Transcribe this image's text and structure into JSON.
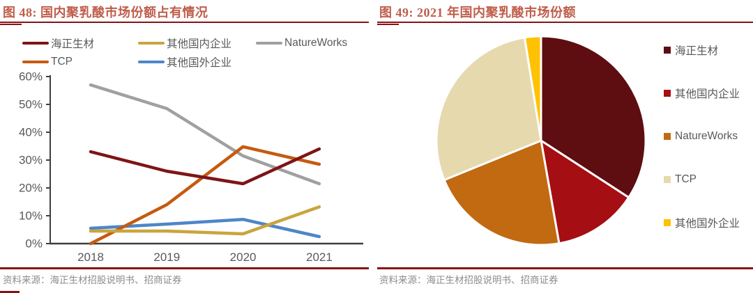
{
  "panels": {
    "left": {
      "title": "图 48: 国内聚乳酸市场份额占有情况",
      "source": "资料来源：海正生材招股说明书、招商证券"
    },
    "right": {
      "title": "图 49: 2021 年国内聚乳酸市场份额",
      "source": "资料来源：海正生材招股说明书、招商证券"
    }
  },
  "colors": {
    "title_text": "#BF5C49",
    "rule_dark_red": "#871215",
    "axis": "#3F3F3F",
    "tick_label": "#595959",
    "legend_label": "#595959",
    "source_text": "#8C8C8C",
    "pie_slice_border": "#FFFFFF"
  },
  "chart_data": [
    {
      "type": "line",
      "title": "国内聚乳酸市场份额占有情况",
      "categories": [
        "2018",
        "2019",
        "2020",
        "2021"
      ],
      "series": [
        {
          "name": "海正生材",
          "color": "#7F1416",
          "values": [
            33,
            26,
            21.5,
            34
          ]
        },
        {
          "name": "其他国内企业",
          "color": "#C9A53E",
          "values": [
            4.5,
            4.5,
            3.5,
            13.2
          ]
        },
        {
          "name": "NatureWorks",
          "color": "#A0A0A0",
          "values": [
            57,
            48.5,
            31.5,
            21.5
          ]
        },
        {
          "name": "TCP",
          "color": "#C55A11",
          "values": [
            0,
            14,
            34.8,
            28.5
          ]
        },
        {
          "name": "其他国外企业",
          "color": "#4E86C8",
          "values": [
            5.5,
            7,
            8.7,
            2.5
          ]
        }
      ],
      "ylim": [
        0,
        60
      ],
      "ytick_step": 10,
      "ytick_suffix": "%",
      "grid": false,
      "legend_position": "top"
    },
    {
      "type": "pie",
      "title": "2021 年国内聚乳酸市场份额",
      "labels": [
        "海正生材",
        "其他国内企业",
        "NatureWorks",
        "TCP",
        "其他国外企业"
      ],
      "values": [
        34,
        13,
        21.5,
        28.5,
        2.5
      ],
      "colors": [
        "#5E0D10",
        "#A50E13",
        "#C16A11",
        "#E6D9AE",
        "#FFC103"
      ],
      "start_angle_deg": 0,
      "direction": "clockwise",
      "legend_position": "right"
    }
  ]
}
